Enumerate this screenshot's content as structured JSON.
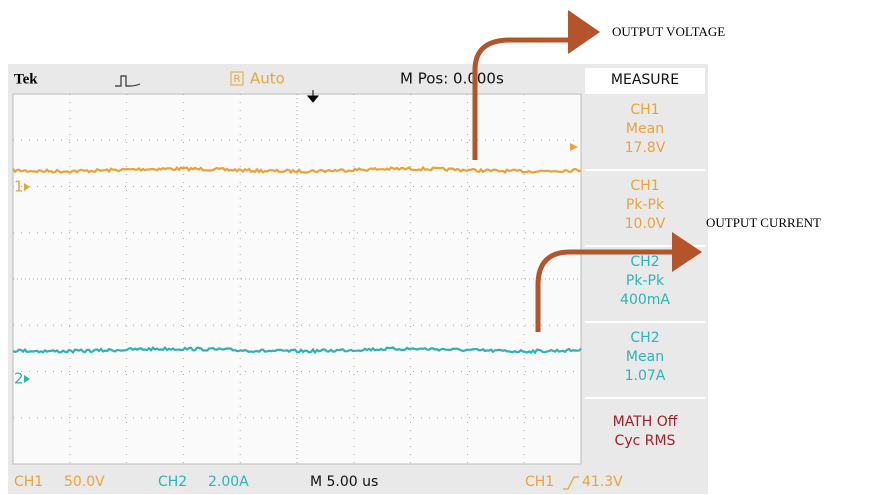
{
  "header": {
    "brand": "Tek",
    "trigger_mode": "Auto",
    "trigger_icon": "R",
    "position": "M Pos: 0.000s"
  },
  "measure": {
    "title": "MEASURE",
    "items": [
      {
        "source": "CH1",
        "kind": "Mean",
        "reading": "17.8V"
      },
      {
        "source": "CH1",
        "kind": "Pk-Pk",
        "reading": "10.0V"
      },
      {
        "source": "CH2",
        "kind": "Pk-Pk",
        "reading": "400mA"
      },
      {
        "source": "CH2",
        "kind": "Mean",
        "reading": "1.07A"
      }
    ],
    "math": [
      "MATH Off",
      "Cyc RMS"
    ]
  },
  "markers": [
    "1",
    "2"
  ],
  "footer": {
    "ch1": "CH1",
    "ch1_scale": "50.0V",
    "ch2": "CH2",
    "ch2_scale": "2.00A",
    "timebase": "M 5.00 us",
    "trigger_source": "CH1",
    "trigger_level": "41.3V"
  },
  "annotations": [
    "OUTPUT VOLTAGE",
    "OUTPUT CURRENT"
  ]
}
